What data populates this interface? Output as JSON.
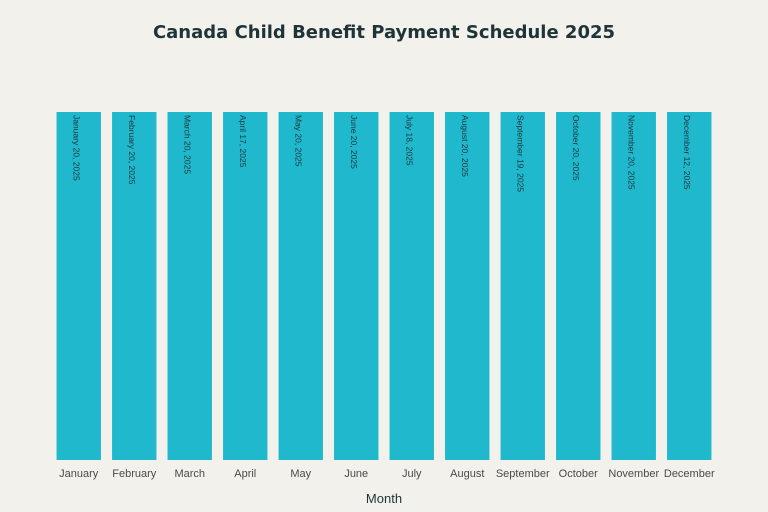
{
  "chart_data": {
    "type": "bar",
    "title": "Canada Child Benefit Payment Schedule 2025",
    "xlabel": "Month",
    "ylabel": "",
    "categories": [
      "January",
      "February",
      "March",
      "April",
      "May",
      "June",
      "July",
      "August",
      "September",
      "October",
      "November",
      "December"
    ],
    "values": [
      1,
      1,
      1,
      1,
      1,
      1,
      1,
      1,
      1,
      1,
      1,
      1
    ],
    "ylim": [
      0,
      1
    ],
    "bar_color": "#1fb8cd",
    "grid": false,
    "data_labels": [
      "January 20, 2025",
      "February 20, 2025",
      "March 20, 2025",
      "April 17, 2025",
      "May 20, 2025",
      "June 20, 2025",
      "July 18, 2025",
      "August 20, 2025",
      "September 19, 2025",
      "October 20, 2025",
      "November 20, 2025",
      "December 12, 2025"
    ]
  }
}
